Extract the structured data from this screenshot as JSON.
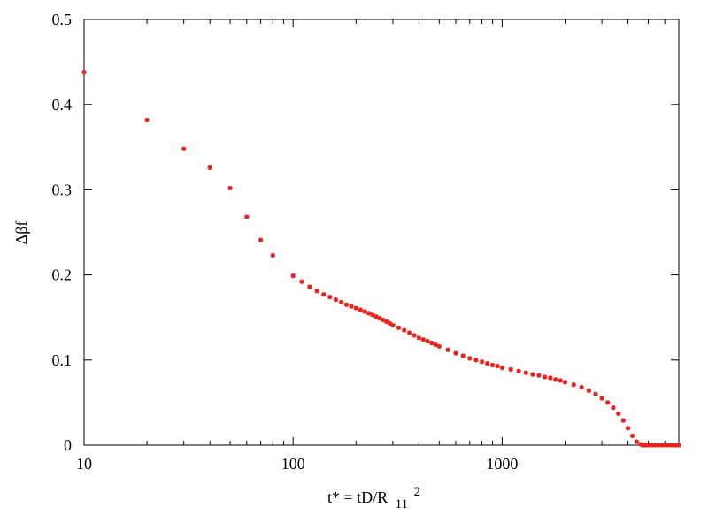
{
  "chart_data": {
    "type": "scatter",
    "title": "",
    "xlabel": "t* = tD/R",
    "xlabel_sub": "11",
    "xlabel_sup": "2",
    "ylabel": "Δβf",
    "x_scale": "log",
    "xlim": [
      10,
      7000
    ],
    "ylim": [
      0,
      0.5
    ],
    "x_ticks": [
      10,
      100,
      1000
    ],
    "x_tick_labels": [
      "10",
      "100",
      "1000"
    ],
    "y_ticks": [
      0,
      0.1,
      0.2,
      0.3,
      0.4,
      0.5
    ],
    "y_tick_labels": [
      "0",
      "0.1",
      "0.2",
      "0.3",
      "0.4",
      "0.5"
    ],
    "grid": false,
    "legend": "none",
    "marker_color": "#e8231d",
    "series": [
      {
        "x": [
          10,
          20,
          30,
          40,
          50,
          60,
          70,
          80,
          100,
          110,
          120,
          130,
          140,
          150,
          160,
          170,
          180,
          190,
          200,
          210,
          220,
          230,
          240,
          250,
          260,
          270,
          280,
          290,
          300,
          320,
          340,
          360,
          380,
          400,
          420,
          440,
          460,
          480,
          500,
          550,
          600,
          650,
          700,
          750,
          800,
          850,
          900,
          950,
          1000,
          1100,
          1200,
          1300,
          1400,
          1500,
          1600,
          1700,
          1800,
          1900,
          2000,
          2200,
          2400,
          2600,
          2800,
          3000,
          3200,
          3400,
          3600,
          3800,
          4000,
          4200,
          4400,
          4600,
          4700,
          4800,
          4900,
          5000,
          5200,
          5400,
          5600,
          5800,
          6000,
          6200,
          6400,
          6600,
          6800,
          7000
        ],
        "y": [
          0.438,
          0.382,
          0.348,
          0.326,
          0.302,
          0.268,
          0.241,
          0.223,
          0.199,
          0.192,
          0.186,
          0.181,
          0.177,
          0.174,
          0.171,
          0.168,
          0.165,
          0.163,
          0.161,
          0.159,
          0.157,
          0.155,
          0.153,
          0.151,
          0.149,
          0.147,
          0.145,
          0.143,
          0.141,
          0.138,
          0.135,
          0.132,
          0.129,
          0.126,
          0.124,
          0.122,
          0.12,
          0.118,
          0.116,
          0.112,
          0.108,
          0.105,
          0.102,
          0.1,
          0.098,
          0.096,
          0.094,
          0.093,
          0.091,
          0.089,
          0.087,
          0.085,
          0.083,
          0.082,
          0.08,
          0.079,
          0.077,
          0.076,
          0.074,
          0.071,
          0.068,
          0.064,
          0.06,
          0.055,
          0.05,
          0.044,
          0.037,
          0.029,
          0.02,
          0.011,
          0.004,
          0.001,
          0.0,
          0.0,
          0.0,
          0.0,
          0.0,
          0.0,
          0.0,
          0.0,
          0.0,
          0.0,
          0.0,
          0.0,
          0.0,
          0.0
        ]
      }
    ]
  }
}
